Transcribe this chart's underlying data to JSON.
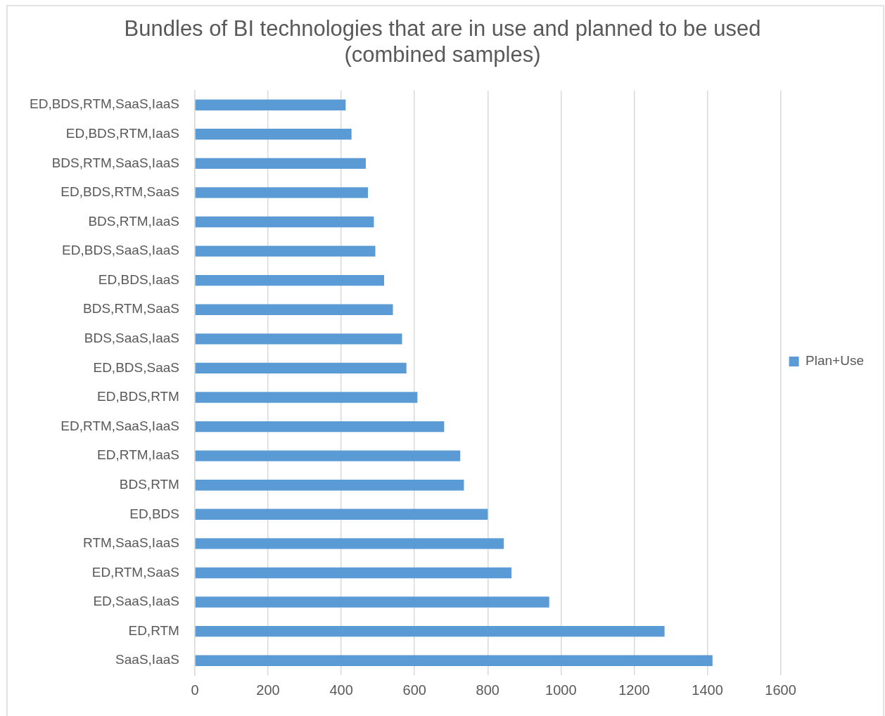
{
  "chart_data": {
    "type": "bar",
    "orientation": "horizontal",
    "title": "Bundles of BI technologies that are in use and planned to be used (combined samples)",
    "categories": [
      "ED,BDS,RTM,SaaS,IaaS",
      "ED,BDS,RTM,IaaS",
      "BDS,RTM,SaaS,IaaS",
      "ED,BDS,RTM,SaaS",
      "BDS,RTM,IaaS",
      "ED,BDS,SaaS,IaaS",
      "ED,BDS,IaaS",
      "BDS,RTM,SaaS",
      "BDS,SaaS,IaaS",
      "ED,BDS,SaaS",
      "ED,BDS,RTM",
      "ED,RTM,SaaS,IaaS",
      "ED,RTM,IaaS",
      "BDS,RTM",
      "ED,BDS",
      "RTM,SaaS,IaaS",
      "ED,RTM,SaaS",
      "ED,SaaS,IaaS",
      "ED,RTM",
      "SaaS,IaaS"
    ],
    "series": [
      {
        "name": "Plan+Use",
        "color": "#5b9bd5",
        "values": [
          412,
          428,
          467,
          473,
          489,
          493,
          517,
          541,
          566,
          578,
          608,
          681,
          725,
          735,
          800,
          844,
          865,
          968,
          1283,
          1414
        ]
      }
    ],
    "xlim": [
      0,
      1600
    ],
    "xticks": [
      0,
      200,
      400,
      600,
      800,
      1000,
      1200,
      1400,
      1600
    ],
    "grid": "x",
    "legend": "right"
  }
}
